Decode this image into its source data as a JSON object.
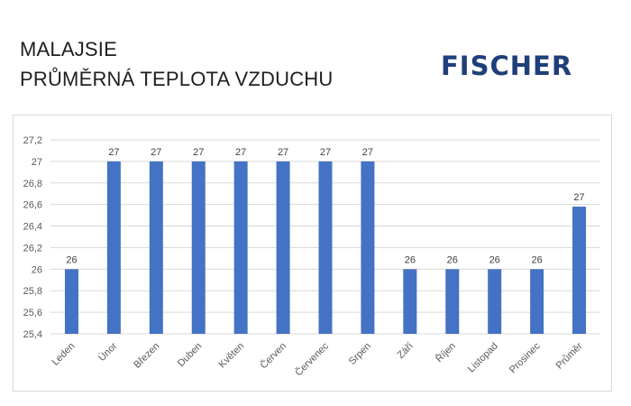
{
  "title": {
    "line1": "MALAJSIE",
    "line2": "PRŮMĚRNÁ TEPLOTA VZDUCHU"
  },
  "logo": {
    "text": "FISCHER",
    "color": "#1f3f7a"
  },
  "chart_data": {
    "type": "bar",
    "title": "",
    "xlabel": "",
    "ylabel": "",
    "categories": [
      "Leden",
      "Únor",
      "Březen",
      "Duben",
      "Květen",
      "Červen",
      "Červenec",
      "Srpen",
      "Září",
      "Říjen",
      "Listopad",
      "Prosinec",
      "Průměr"
    ],
    "values": [
      26,
      27,
      27,
      27,
      27,
      27,
      27,
      27,
      26,
      26,
      26,
      26,
      26.58
    ],
    "data_labels": [
      "26",
      "27",
      "27",
      "27",
      "27",
      "27",
      "27",
      "27",
      "26",
      "26",
      "26",
      "26",
      "27"
    ],
    "ylim": [
      25.4,
      27.2
    ],
    "y_ticks": [
      "25,4",
      "25,6",
      "25,8",
      "26",
      "26,2",
      "26,4",
      "26,6",
      "26,8",
      "27",
      "27,2"
    ],
    "y_tick_values": [
      25.4,
      25.6,
      25.8,
      26,
      26.2,
      26.4,
      26.6,
      26.8,
      27,
      27.2
    ],
    "grid": true,
    "legend": "none",
    "bar_color": "#4472c4",
    "grid_color": "#d9d9d9"
  }
}
